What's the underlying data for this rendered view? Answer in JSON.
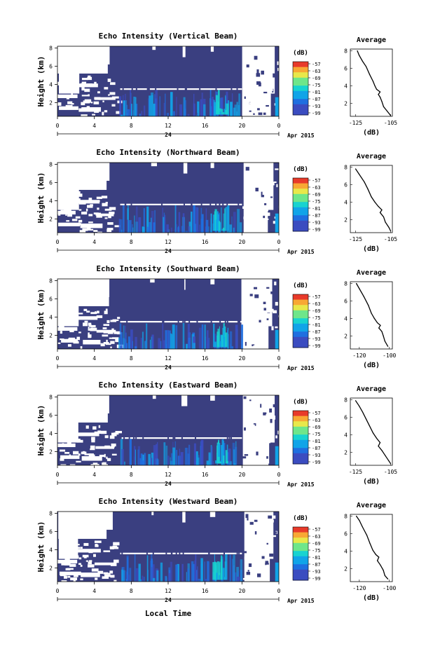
{
  "chart_data": [
    {
      "type": "heatmap",
      "title": "Echo Intensity (Vertical Beam)",
      "ylabel": "Height (km)",
      "y_ticks": [
        "2",
        "4",
        "6",
        "8"
      ],
      "ylim": [
        0.5,
        8.2
      ],
      "x_ticks": [
        "0",
        "4",
        "8",
        "12",
        "16",
        "20",
        "0"
      ],
      "xlim": [
        0,
        24
      ],
      "date_label": "24",
      "month_label": "Apr 2015",
      "colorbar_unit": "(dB)",
      "colorbar_ticks": [
        "-57",
        "-63",
        "-69",
        "-75",
        "-81",
        "-87",
        "-93",
        "-99"
      ],
      "layer_height_km": 3.5,
      "profile": {
        "title": "Average",
        "xlabel": "(dB)",
        "x_ticks": [
          "-125",
          "-105"
        ],
        "y_ticks": [
          "2",
          "4",
          "6",
          "8"
        ],
        "xlim": [
          -128,
          -104
        ],
        "ylim": [
          0.5,
          8.2
        ],
        "points": [
          {
            "x": -124,
            "y": 8.0
          },
          {
            "x": -123,
            "y": 7.5
          },
          {
            "x": -121,
            "y": 6.8
          },
          {
            "x": -119,
            "y": 6.2
          },
          {
            "x": -117,
            "y": 5.3
          },
          {
            "x": -115,
            "y": 4.5
          },
          {
            "x": -114,
            "y": 4.0
          },
          {
            "x": -113,
            "y": 3.6
          },
          {
            "x": -111,
            "y": 3.3
          },
          {
            "x": -112,
            "y": 3.0
          },
          {
            "x": -111,
            "y": 2.7
          },
          {
            "x": -110,
            "y": 2.2
          },
          {
            "x": -109,
            "y": 1.6
          },
          {
            "x": -107,
            "y": 1.1
          },
          {
            "x": -105,
            "y": 0.6
          }
        ]
      }
    },
    {
      "type": "heatmap",
      "title": "Echo Intensity (Northward Beam)",
      "ylabel": "Height (km)",
      "y_ticks": [
        "2",
        "4",
        "6",
        "8"
      ],
      "ylim": [
        0.5,
        8.2
      ],
      "x_ticks": [
        "0",
        "4",
        "8",
        "12",
        "16",
        "20",
        "0"
      ],
      "xlim": [
        0,
        24
      ],
      "date_label": "24",
      "month_label": "Apr 2015",
      "colorbar_unit": "(dB)",
      "colorbar_ticks": [
        "-57",
        "-63",
        "-69",
        "-75",
        "-81",
        "-87",
        "-93",
        "-99"
      ],
      "layer_height_km": 3.6,
      "profile": {
        "title": "Average",
        "xlabel": "(dB)",
        "x_ticks": [
          "-125",
          "-105"
        ],
        "y_ticks": [
          "2",
          "4",
          "6",
          "8"
        ],
        "xlim": [
          -128,
          -104
        ],
        "ylim": [
          0.5,
          8.2
        ],
        "points": [
          {
            "x": -125,
            "y": 7.8
          },
          {
            "x": -123,
            "y": 7.2
          },
          {
            "x": -120,
            "y": 6.3
          },
          {
            "x": -118,
            "y": 5.5
          },
          {
            "x": -116,
            "y": 4.6
          },
          {
            "x": -114,
            "y": 4.0
          },
          {
            "x": -112,
            "y": 3.5
          },
          {
            "x": -110,
            "y": 3.1
          },
          {
            "x": -111,
            "y": 2.8
          },
          {
            "x": -109,
            "y": 2.3
          },
          {
            "x": -108,
            "y": 1.7
          },
          {
            "x": -106,
            "y": 1.1
          },
          {
            "x": -105,
            "y": 0.7
          }
        ]
      }
    },
    {
      "type": "heatmap",
      "title": "Echo Intensity (Southward Beam)",
      "ylabel": "Height (km)",
      "y_ticks": [
        "2",
        "4",
        "6",
        "8"
      ],
      "ylim": [
        0.5,
        8.2
      ],
      "x_ticks": [
        "0",
        "4",
        "8",
        "12",
        "16",
        "20",
        "0"
      ],
      "xlim": [
        0,
        24
      ],
      "date_label": "24",
      "month_label": "Apr 2015",
      "colorbar_unit": "(dB)",
      "colorbar_ticks": [
        "-57",
        "-63",
        "-69",
        "-75",
        "-81",
        "-87",
        "-93",
        "-99"
      ],
      "layer_height_km": 3.5,
      "profile": {
        "title": "Average",
        "xlabel": "(dB)",
        "x_ticks": [
          "-120",
          "-100"
        ],
        "y_ticks": [
          "2",
          "4",
          "6",
          "8"
        ],
        "xlim": [
          -126,
          -98
        ],
        "ylim": [
          0.5,
          8.2
        ],
        "points": [
          {
            "x": -122,
            "y": 8.0
          },
          {
            "x": -120,
            "y": 7.4
          },
          {
            "x": -117,
            "y": 6.5
          },
          {
            "x": -114,
            "y": 5.5
          },
          {
            "x": -112,
            "y": 4.6
          },
          {
            "x": -110,
            "y": 4.0
          },
          {
            "x": -108,
            "y": 3.5
          },
          {
            "x": -106,
            "y": 3.2
          },
          {
            "x": -107,
            "y": 2.9
          },
          {
            "x": -105,
            "y": 2.5
          },
          {
            "x": -104,
            "y": 2.0
          },
          {
            "x": -103,
            "y": 1.4
          },
          {
            "x": -101,
            "y": 0.8
          }
        ]
      }
    },
    {
      "type": "heatmap",
      "title": "Echo Intensity (Eastward Beam)",
      "ylabel": "Height (km)",
      "y_ticks": [
        "2",
        "4",
        "6",
        "8"
      ],
      "ylim": [
        0.5,
        8.2
      ],
      "x_ticks": [
        "0",
        "4",
        "8",
        "12",
        "16",
        "20",
        "0"
      ],
      "xlim": [
        0,
        24
      ],
      "date_label": "24",
      "month_label": "Apr 2015",
      "colorbar_unit": "(dB)",
      "colorbar_ticks": [
        "-57",
        "-63",
        "-69",
        "-75",
        "-81",
        "-87",
        "-93",
        "-99"
      ],
      "layer_height_km": 3.5,
      "profile": {
        "title": "Average",
        "xlabel": "(dB)",
        "x_ticks": [
          "-125",
          "-105"
        ],
        "y_ticks": [
          "2",
          "4",
          "6",
          "8"
        ],
        "xlim": [
          -128,
          -104
        ],
        "ylim": [
          0.5,
          8.2
        ],
        "points": [
          {
            "x": -125,
            "y": 7.9
          },
          {
            "x": -123,
            "y": 7.3
          },
          {
            "x": -121,
            "y": 6.6
          },
          {
            "x": -119,
            "y": 5.8
          },
          {
            "x": -117,
            "y": 5.0
          },
          {
            "x": -115,
            "y": 4.2
          },
          {
            "x": -113,
            "y": 3.6
          },
          {
            "x": -111,
            "y": 3.1
          },
          {
            "x": -112,
            "y": 2.7
          },
          {
            "x": -110,
            "y": 2.2
          },
          {
            "x": -108,
            "y": 1.6
          },
          {
            "x": -106,
            "y": 1.0
          },
          {
            "x": -105,
            "y": 0.7
          }
        ]
      }
    },
    {
      "type": "heatmap",
      "title": "Echo Intensity (Westward Beam)",
      "ylabel": "Height (km)",
      "y_ticks": [
        "2",
        "4",
        "6",
        "8"
      ],
      "ylim": [
        0.5,
        8.2
      ],
      "x_ticks": [
        "0",
        "4",
        "8",
        "12",
        "16",
        "20",
        "0"
      ],
      "xlim": [
        0,
        24
      ],
      "date_label": "24",
      "month_label": "Apr 2015",
      "colorbar_unit": "(dB)",
      "colorbar_ticks": [
        "-57",
        "-63",
        "-69",
        "-75",
        "-81",
        "-87",
        "-93",
        "-99"
      ],
      "layer_height_km": 3.6,
      "profile": {
        "title": "Average",
        "xlabel": "(dB)",
        "x_ticks": [
          "-120",
          "-100"
        ],
        "y_ticks": [
          "2",
          "4",
          "6",
          "8"
        ],
        "xlim": [
          -126,
          -98
        ],
        "ylim": [
          0.5,
          8.2
        ],
        "points": [
          {
            "x": -122,
            "y": 8.0
          },
          {
            "x": -120,
            "y": 7.5
          },
          {
            "x": -118,
            "y": 6.8
          },
          {
            "x": -115,
            "y": 5.8
          },
          {
            "x": -113,
            "y": 4.9
          },
          {
            "x": -111,
            "y": 4.1
          },
          {
            "x": -109,
            "y": 3.6
          },
          {
            "x": -107,
            "y": 3.3
          },
          {
            "x": -108,
            "y": 2.9
          },
          {
            "x": -106,
            "y": 2.4
          },
          {
            "x": -104,
            "y": 1.8
          },
          {
            "x": -103,
            "y": 1.2
          },
          {
            "x": -101,
            "y": 0.8
          }
        ]
      }
    }
  ],
  "footer": {
    "xlabel": "Local Time"
  },
  "colors": {
    "background": "#ffffff",
    "navy": "#3a3f80",
    "colormap": [
      "#3a3f80",
      "#3b4cc0",
      "#1f6fe0",
      "#11a4e8",
      "#18d3d0",
      "#6ee68a",
      "#e8e84a",
      "#f8a834",
      "#e83a2a"
    ]
  }
}
